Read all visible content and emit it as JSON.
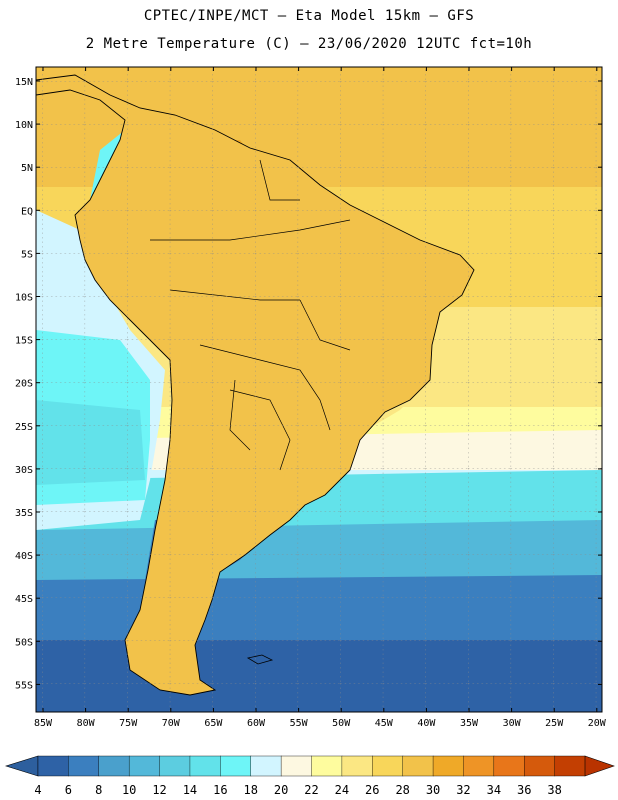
{
  "header": {
    "line1": "CPTEC/INPE/MCT –  Eta Model 15km – GFS",
    "line2": "2 Metre Temperature (C) – 23/06/2020 12UTC fct=10h"
  },
  "map": {
    "lat_labels": [
      "15N",
      "10N",
      "5N",
      "EQ",
      "5S",
      "10S",
      "15S",
      "20S",
      "25S",
      "30S",
      "35S",
      "40S",
      "45S",
      "50S",
      "55S"
    ],
    "lon_labels": [
      "85W",
      "80W",
      "75W",
      "70W",
      "65W",
      "60W",
      "55W",
      "50W",
      "45W",
      "40W",
      "35W",
      "30W",
      "25W",
      "20W"
    ]
  },
  "colorbar": {
    "labels": [
      "4",
      "6",
      "8",
      "10",
      "12",
      "14",
      "16",
      "18",
      "20",
      "22",
      "24",
      "26",
      "28",
      "30",
      "32",
      "34",
      "36",
      "38"
    ],
    "colors": [
      "#2e62a6",
      "#3b7fbf",
      "#4aa0cc",
      "#53b8d9",
      "#5ccde0",
      "#62e2ea",
      "#6ef5f7",
      "#d2f5ff",
      "#fdf8e1",
      "#fefc9e",
      "#fbe783",
      "#f8d65a",
      "#f2c24a",
      "#efa928",
      "#ee9426",
      "#e8761a",
      "#d55a0c",
      "#c33f02"
    ],
    "under_color": "#2d5f9e",
    "over_color": "#b93300"
  }
}
